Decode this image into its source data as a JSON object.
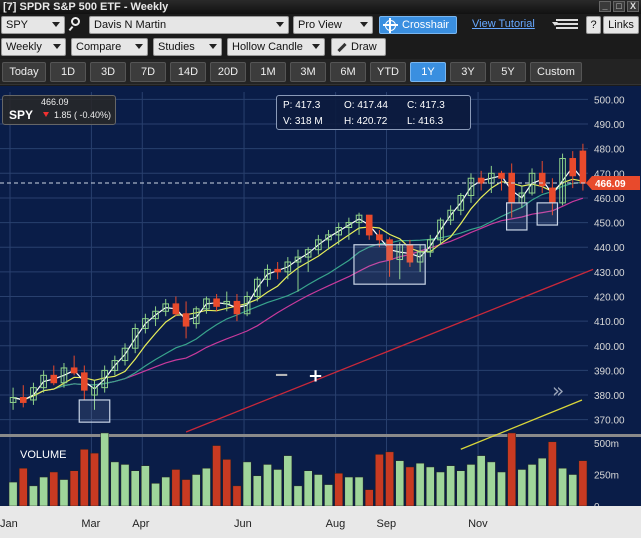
{
  "window": {
    "title": "[7] SPDR S&P 500 ETF - Weekly",
    "buttons": [
      "_",
      "□",
      "X"
    ]
  },
  "toolbar1": {
    "symbol_value": "SPY",
    "account_value": "Davis N Martin",
    "view_value": "Pro View",
    "crosshair_label": "Crosshair",
    "tutorial_label": "View Tutorial",
    "help_label": "?",
    "links_label": "Links"
  },
  "toolbar2": {
    "period_value": "Weekly",
    "compare_label": "Compare",
    "studies_label": "Studies",
    "chart_type_value": "Hollow Candle",
    "draw_label": "Draw"
  },
  "timeframes": {
    "items": [
      "Today",
      "1D",
      "3D",
      "7D",
      "14D",
      "20D",
      "1M",
      "3M",
      "6M",
      "YTD",
      "1Y",
      "3Y",
      "5Y",
      "Custom"
    ],
    "active": "1Y"
  },
  "quote": {
    "symbol": "SPY",
    "price": "466.09",
    "change": "1.85 ( -0.40%)",
    "direction": "down"
  },
  "ohlc": {
    "p": "P: 417.3",
    "o": "O: 417.44",
    "c": "C: 417.3",
    "v": "V: 318 M",
    "h": "H: 420.72",
    "l": "L: 416.3"
  },
  "volume_label": "VOLUME",
  "zoom": {
    "minus": "−",
    "plus": "+"
  },
  "scroll_glyph": "»",
  "colors": {
    "chart_bg": "#0a1d48",
    "grid": "#29406e",
    "up": "#8fd28a",
    "down": "#e84a2c",
    "ma_fast": "#ffffff",
    "ma_mid": "#e6ee5a",
    "ma_teal": "#39a48c",
    "ma_magenta": "#c83a9c",
    "ma_200": "#c8283a",
    "vol_up": "#9fd59a",
    "vol_down": "#c83a22",
    "price_tag": "#e84a2c",
    "accent": "#3a8fe0"
  },
  "chart_data": {
    "type": "candlestick",
    "y_ticks": [
      370,
      380,
      390,
      400,
      410,
      420,
      430,
      440,
      450,
      460,
      470,
      480,
      490,
      500
    ],
    "y_range": [
      365,
      503
    ],
    "last_price": "466.09",
    "last_price_value": 466.09,
    "volume_ticks": [
      "500m",
      "250m",
      "0"
    ],
    "volume_range": [
      0,
      540
    ],
    "x_labels": [
      "Jan",
      "Mar",
      "Apr",
      "Jun",
      "Aug",
      "Sep",
      "Nov"
    ],
    "x_label_week_index": [
      0,
      8,
      13,
      23,
      32,
      37,
      46
    ],
    "candles": [
      {
        "o": 377,
        "h": 383,
        "l": 374,
        "c": 379
      },
      {
        "o": 379,
        "h": 384,
        "l": 375,
        "c": 377
      },
      {
        "o": 378,
        "h": 385,
        "l": 376,
        "c": 383
      },
      {
        "o": 383,
        "h": 390,
        "l": 381,
        "c": 388
      },
      {
        "o": 388,
        "h": 392,
        "l": 384,
        "c": 385
      },
      {
        "o": 385,
        "h": 393,
        "l": 383,
        "c": 391
      },
      {
        "o": 391,
        "h": 396,
        "l": 388,
        "c": 389
      },
      {
        "o": 389,
        "h": 392,
        "l": 378,
        "c": 382
      },
      {
        "o": 380,
        "h": 386,
        "l": 374,
        "c": 383
      },
      {
        "o": 383,
        "h": 392,
        "l": 381,
        "c": 390
      },
      {
        "o": 390,
        "h": 396,
        "l": 388,
        "c": 394
      },
      {
        "o": 394,
        "h": 401,
        "l": 392,
        "c": 399
      },
      {
        "o": 399,
        "h": 409,
        "l": 397,
        "c": 407
      },
      {
        "o": 407,
        "h": 413,
        "l": 405,
        "c": 411
      },
      {
        "o": 411,
        "h": 416,
        "l": 408,
        "c": 414
      },
      {
        "o": 414,
        "h": 419,
        "l": 412,
        "c": 417
      },
      {
        "o": 417,
        "h": 420,
        "l": 412,
        "c": 413
      },
      {
        "o": 413,
        "h": 418,
        "l": 403,
        "c": 408
      },
      {
        "o": 409,
        "h": 416,
        "l": 407,
        "c": 415
      },
      {
        "o": 415,
        "h": 420,
        "l": 413,
        "c": 419
      },
      {
        "o": 419,
        "h": 421,
        "l": 414,
        "c": 416
      },
      {
        "o": 417,
        "h": 422,
        "l": 414,
        "c": 418
      },
      {
        "o": 418,
        "h": 421,
        "l": 410,
        "c": 413
      },
      {
        "o": 413,
        "h": 422,
        "l": 412,
        "c": 420
      },
      {
        "o": 420,
        "h": 428,
        "l": 418,
        "c": 427
      },
      {
        "o": 427,
        "h": 433,
        "l": 424,
        "c": 431
      },
      {
        "o": 431,
        "h": 434,
        "l": 427,
        "c": 430
      },
      {
        "o": 430,
        "h": 436,
        "l": 427,
        "c": 434
      },
      {
        "o": 434,
        "h": 439,
        "l": 422,
        "c": 436
      },
      {
        "o": 436,
        "h": 440,
        "l": 430,
        "c": 439
      },
      {
        "o": 439,
        "h": 445,
        "l": 437,
        "c": 443
      },
      {
        "o": 443,
        "h": 447,
        "l": 439,
        "c": 445
      },
      {
        "o": 445,
        "h": 450,
        "l": 441,
        "c": 448
      },
      {
        "o": 448,
        "h": 452,
        "l": 443,
        "c": 450
      },
      {
        "o": 450,
        "h": 454,
        "l": 445,
        "c": 453
      },
      {
        "o": 453,
        "h": 452,
        "l": 443,
        "c": 445
      },
      {
        "o": 445,
        "h": 447,
        "l": 440,
        "c": 443
      },
      {
        "o": 443,
        "h": 444,
        "l": 428,
        "c": 435
      },
      {
        "o": 435,
        "h": 442,
        "l": 427,
        "c": 441
      },
      {
        "o": 441,
        "h": 443,
        "l": 432,
        "c": 434
      },
      {
        "o": 434,
        "h": 441,
        "l": 430,
        "c": 438
      },
      {
        "o": 438,
        "h": 445,
        "l": 436,
        "c": 443
      },
      {
        "o": 443,
        "h": 452,
        "l": 441,
        "c": 451
      },
      {
        "o": 451,
        "h": 457,
        "l": 449,
        "c": 455
      },
      {
        "o": 455,
        "h": 462,
        "l": 453,
        "c": 461
      },
      {
        "o": 461,
        "h": 470,
        "l": 458,
        "c": 468
      },
      {
        "o": 468,
        "h": 471,
        "l": 463,
        "c": 466
      },
      {
        "o": 466,
        "h": 473,
        "l": 462,
        "c": 470
      },
      {
        "o": 470,
        "h": 471,
        "l": 463,
        "c": 468
      },
      {
        "o": 470,
        "h": 474,
        "l": 452,
        "c": 458
      },
      {
        "o": 458,
        "h": 465,
        "l": 456,
        "c": 462
      },
      {
        "o": 462,
        "h": 472,
        "l": 461,
        "c": 470
      },
      {
        "o": 470,
        "h": 475,
        "l": 462,
        "c": 465
      },
      {
        "o": 464,
        "h": 468,
        "l": 453,
        "c": 458
      },
      {
        "o": 458,
        "h": 478,
        "l": 457,
        "c": 476
      },
      {
        "o": 476,
        "h": 479,
        "l": 464,
        "c": 469
      },
      {
        "o": 479,
        "h": 482,
        "l": 463,
        "c": 466
      }
    ],
    "volume": [
      {
        "v": 190,
        "up": true
      },
      {
        "v": 300,
        "up": false
      },
      {
        "v": 160,
        "up": true
      },
      {
        "v": 230,
        "up": true
      },
      {
        "v": 270,
        "up": false
      },
      {
        "v": 210,
        "up": true
      },
      {
        "v": 280,
        "up": false
      },
      {
        "v": 450,
        "up": false
      },
      {
        "v": 420,
        "up": false
      },
      {
        "v": 580,
        "up": true
      },
      {
        "v": 350,
        "up": true
      },
      {
        "v": 330,
        "up": true
      },
      {
        "v": 280,
        "up": true
      },
      {
        "v": 320,
        "up": true
      },
      {
        "v": 180,
        "up": true
      },
      {
        "v": 230,
        "up": true
      },
      {
        "v": 290,
        "up": false
      },
      {
        "v": 210,
        "up": false
      },
      {
        "v": 250,
        "up": true
      },
      {
        "v": 300,
        "up": true
      },
      {
        "v": 480,
        "up": false
      },
      {
        "v": 370,
        "up": false
      },
      {
        "v": 160,
        "up": false
      },
      {
        "v": 350,
        "up": true
      },
      {
        "v": 240,
        "up": true
      },
      {
        "v": 330,
        "up": true
      },
      {
        "v": 290,
        "up": true
      },
      {
        "v": 400,
        "up": true
      },
      {
        "v": 160,
        "up": true
      },
      {
        "v": 280,
        "up": true
      },
      {
        "v": 250,
        "up": true
      },
      {
        "v": 170,
        "up": true
      },
      {
        "v": 260,
        "up": false
      },
      {
        "v": 230,
        "up": true
      },
      {
        "v": 230,
        "up": true
      },
      {
        "v": 130,
        "up": false
      },
      {
        "v": 410,
        "up": false
      },
      {
        "v": 430,
        "up": false
      },
      {
        "v": 360,
        "up": true
      },
      {
        "v": 310,
        "up": false
      },
      {
        "v": 340,
        "up": true
      },
      {
        "v": 310,
        "up": true
      },
      {
        "v": 270,
        "up": true
      },
      {
        "v": 320,
        "up": true
      },
      {
        "v": 280,
        "up": true
      },
      {
        "v": 330,
        "up": true
      },
      {
        "v": 400,
        "up": true
      },
      {
        "v": 350,
        "up": true
      },
      {
        "v": 270,
        "up": true
      },
      {
        "v": 580,
        "up": false
      },
      {
        "v": 290,
        "up": true
      },
      {
        "v": 330,
        "up": true
      },
      {
        "v": 380,
        "up": true
      },
      {
        "v": 510,
        "up": false
      },
      {
        "v": 300,
        "up": true
      },
      {
        "v": 250,
        "up": true
      },
      {
        "v": 360,
        "up": false
      }
    ],
    "highlight_regions": [
      {
        "from_week": 7,
        "to_week": 9,
        "low": 369,
        "high": 378
      },
      {
        "from_week": 34,
        "to_week": 40,
        "low": 425,
        "high": 441
      },
      {
        "from_week": 49,
        "to_week": 50,
        "low": 447,
        "high": 458
      },
      {
        "from_week": 52,
        "to_week": 53,
        "low": 449,
        "high": 458
      }
    ],
    "ma_200_points": [
      [
        17,
        365
      ],
      [
        57,
        431
      ]
    ],
    "ma_long_points": [
      [
        44,
        358
      ],
      [
        57,
        378
      ]
    ]
  }
}
